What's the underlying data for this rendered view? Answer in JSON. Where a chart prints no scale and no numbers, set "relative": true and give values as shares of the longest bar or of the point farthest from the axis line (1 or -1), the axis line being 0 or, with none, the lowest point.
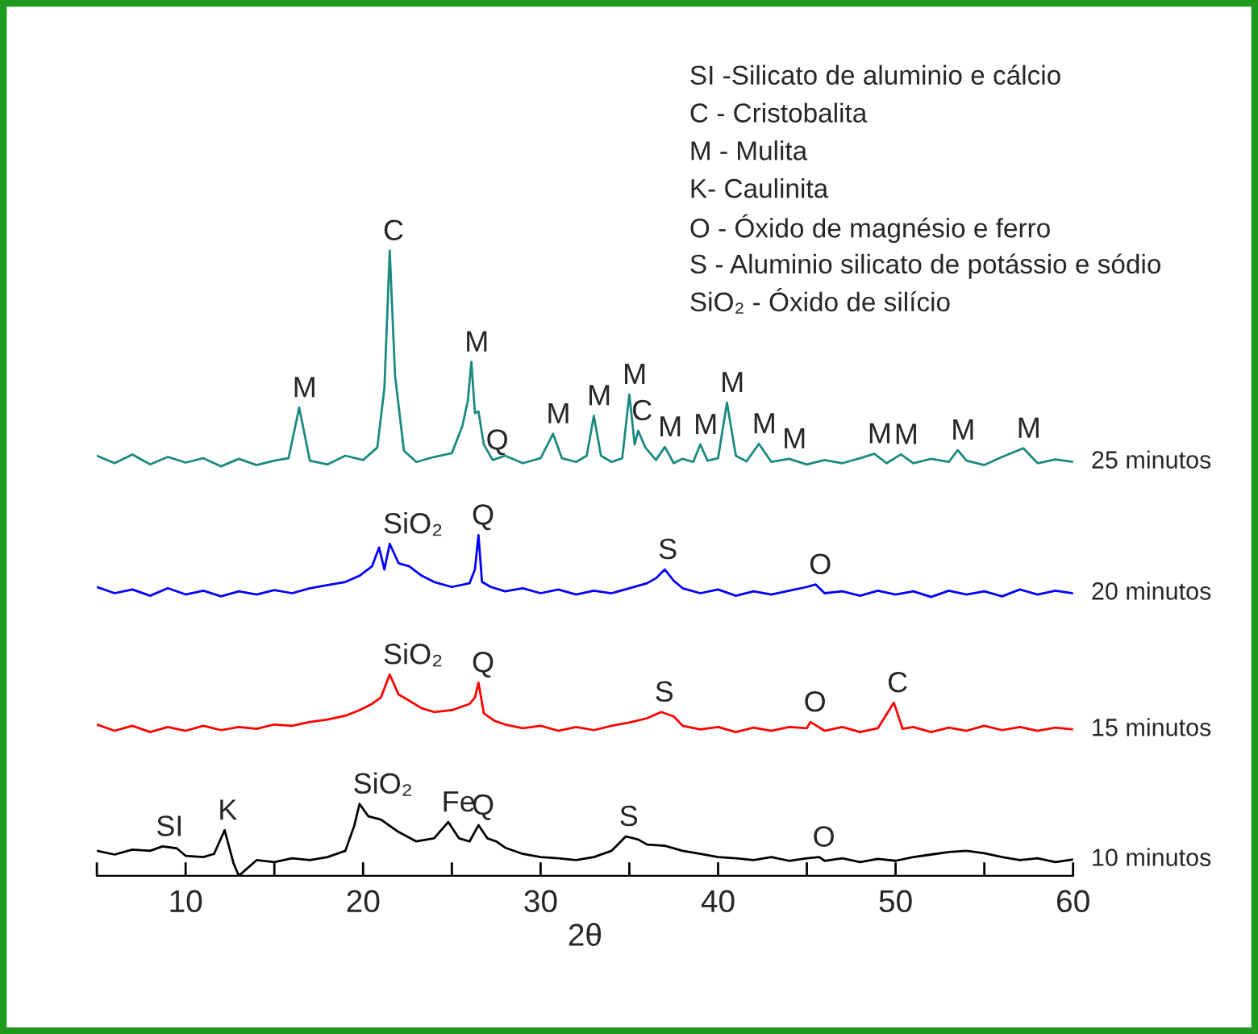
{
  "chart_data": {
    "type": "line",
    "relative": true,
    "xlabel": "2θ",
    "xlim": [
      5,
      60
    ],
    "xticks": [
      {
        "value": 5,
        "label": null
      },
      10,
      {
        "value": 15,
        "label": null
      },
      20,
      {
        "value": 25,
        "label": null
      },
      30,
      {
        "value": 35,
        "label": null
      },
      40,
      {
        "value": 45,
        "label": null
      },
      50,
      {
        "value": 55,
        "label": null
      },
      60
    ],
    "series": [
      {
        "name": "25 minutos",
        "color": "#1a8a80",
        "x": [
          5,
          6,
          7,
          8,
          9,
          10,
          11,
          12,
          13,
          14,
          15,
          15.8,
          16.4,
          17,
          18,
          19,
          20,
          20.8,
          21.2,
          21.5,
          21.8,
          22.3,
          23,
          24,
          25,
          25.6,
          25.9,
          26.1,
          26.3,
          26.5,
          26.8,
          27.3,
          28,
          29,
          30,
          30.7,
          31.2,
          32,
          32.6,
          33,
          33.4,
          34,
          34.6,
          35,
          35.3,
          35.5,
          35.9,
          36.5,
          37,
          37.5,
          38,
          38.6,
          39,
          39.4,
          40,
          40.5,
          41,
          41.6,
          42.3,
          43,
          44,
          45,
          46,
          47,
          48,
          48.8,
          49.5,
          50.3,
          51,
          52,
          53,
          53.5,
          54,
          55,
          56,
          57.2,
          58,
          59,
          60
        ],
        "values": [
          0.672,
          0.66,
          0.674,
          0.658,
          0.67,
          0.661,
          0.668,
          0.655,
          0.667,
          0.657,
          0.664,
          0.668,
          0.749,
          0.664,
          0.658,
          0.672,
          0.665,
          0.685,
          0.78,
          1.0,
          0.8,
          0.68,
          0.662,
          0.67,
          0.676,
          0.72,
          0.76,
          0.822,
          0.74,
          0.743,
          0.69,
          0.665,
          0.672,
          0.66,
          0.668,
          0.707,
          0.668,
          0.662,
          0.672,
          0.736,
          0.672,
          0.662,
          0.668,
          0.77,
          0.69,
          0.712,
          0.685,
          0.665,
          0.686,
          0.66,
          0.667,
          0.662,
          0.69,
          0.664,
          0.668,
          0.757,
          0.672,
          0.663,
          0.691,
          0.662,
          0.667,
          0.658,
          0.665,
          0.66,
          0.668,
          0.675,
          0.66,
          0.674,
          0.66,
          0.667,
          0.662,
          0.681,
          0.664,
          0.657,
          0.67,
          0.684,
          0.66,
          0.666,
          0.662
        ]
      },
      {
        "name": "20 minutos",
        "color": "#0000ff",
        "x": [
          5,
          6,
          7,
          8,
          9,
          10,
          11,
          12,
          13,
          14,
          15,
          16,
          17,
          18,
          19,
          19.8,
          20.5,
          20.9,
          21.2,
          21.5,
          22,
          22.6,
          23.3,
          24,
          25,
          26,
          26.3,
          26.5,
          26.7,
          27.2,
          28,
          29,
          30,
          31,
          32,
          33,
          34,
          35,
          36,
          36.5,
          37,
          37.5,
          38,
          39,
          40,
          41,
          42,
          43,
          44,
          45,
          45.5,
          46,
          47,
          48,
          49,
          50,
          51,
          52,
          53,
          54,
          55,
          56,
          57,
          58,
          59,
          60
        ],
        "values": [
          0.462,
          0.452,
          0.458,
          0.448,
          0.46,
          0.45,
          0.456,
          0.447,
          0.455,
          0.45,
          0.457,
          0.452,
          0.46,
          0.465,
          0.47,
          0.48,
          0.495,
          0.525,
          0.49,
          0.531,
          0.5,
          0.495,
          0.48,
          0.47,
          0.462,
          0.468,
          0.49,
          0.545,
          0.47,
          0.462,
          0.455,
          0.46,
          0.452,
          0.458,
          0.45,
          0.456,
          0.452,
          0.46,
          0.468,
          0.476,
          0.49,
          0.472,
          0.46,
          0.452,
          0.458,
          0.448,
          0.455,
          0.45,
          0.456,
          0.462,
          0.466,
          0.452,
          0.455,
          0.448,
          0.456,
          0.45,
          0.455,
          0.446,
          0.456,
          0.45,
          0.455,
          0.447,
          0.458,
          0.45,
          0.456,
          0.452
        ]
      },
      {
        "name": "15 minutos",
        "color": "#ff0000",
        "x": [
          5,
          6,
          7,
          8,
          9,
          10,
          11,
          12,
          13,
          14,
          15,
          16,
          17,
          18,
          19,
          19.8,
          20.5,
          21,
          21.5,
          22,
          22.6,
          23.3,
          24,
          25,
          26,
          26.3,
          26.5,
          26.8,
          27.4,
          28,
          29,
          30,
          31,
          32,
          33,
          34,
          35,
          36,
          36.8,
          37.5,
          38,
          39,
          40,
          41,
          42,
          43,
          44,
          45,
          45.2,
          46,
          47,
          48,
          49,
          49.9,
          50.4,
          51,
          52,
          53,
          54,
          55,
          56,
          57,
          58,
          59,
          60
        ],
        "values": [
          0.242,
          0.232,
          0.24,
          0.23,
          0.238,
          0.232,
          0.24,
          0.233,
          0.238,
          0.235,
          0.242,
          0.24,
          0.246,
          0.25,
          0.256,
          0.265,
          0.275,
          0.285,
          0.322,
          0.29,
          0.28,
          0.268,
          0.262,
          0.265,
          0.275,
          0.285,
          0.309,
          0.26,
          0.248,
          0.242,
          0.236,
          0.24,
          0.232,
          0.238,
          0.233,
          0.24,
          0.245,
          0.252,
          0.262,
          0.255,
          0.24,
          0.234,
          0.238,
          0.23,
          0.237,
          0.232,
          0.238,
          0.236,
          0.246,
          0.232,
          0.238,
          0.23,
          0.236,
          0.277,
          0.235,
          0.238,
          0.23,
          0.237,
          0.232,
          0.24,
          0.233,
          0.238,
          0.232,
          0.237,
          0.234
        ]
      },
      {
        "name": "10 minutos",
        "color": "#000000",
        "x": [
          5,
          6,
          7,
          8,
          8.7,
          9.5,
          10,
          11,
          11.6,
          12.2,
          12.7,
          13,
          14,
          15,
          16,
          17,
          18,
          19,
          19.5,
          19.8,
          20.3,
          21,
          22,
          23,
          24,
          24.8,
          25.4,
          26,
          26.5,
          27,
          27.5,
          28,
          29,
          30,
          31,
          32,
          33,
          34,
          34.8,
          35.5,
          36,
          37,
          38,
          39,
          40,
          41,
          42,
          43,
          44,
          45,
          45.7,
          46,
          47,
          48,
          49,
          50,
          51,
          52,
          53,
          54,
          55,
          56,
          57,
          58,
          59,
          60
        ],
        "values": [
          0.04,
          0.034,
          0.042,
          0.04,
          0.047,
          0.044,
          0.032,
          0.03,
          0.035,
          0.073,
          0.02,
          0.0,
          0.025,
          0.022,
          0.028,
          0.025,
          0.03,
          0.04,
          0.08,
          0.115,
          0.095,
          0.09,
          0.07,
          0.055,
          0.06,
          0.086,
          0.06,
          0.055,
          0.081,
          0.06,
          0.055,
          0.045,
          0.035,
          0.03,
          0.028,
          0.025,
          0.03,
          0.04,
          0.063,
          0.058,
          0.05,
          0.048,
          0.04,
          0.035,
          0.03,
          0.028,
          0.025,
          0.03,
          0.024,
          0.028,
          0.03,
          0.024,
          0.028,
          0.022,
          0.027,
          0.024,
          0.03,
          0.034,
          0.038,
          0.04,
          0.036,
          0.03,
          0.025,
          0.028,
          0.022,
          0.026
        ]
      }
    ],
    "annotations": [
      "SI -Silicato de aluminio e cálcio",
      "C - Cristobalita",
      "M - Mulita",
      "K- Caulinita",
      "O - Óxido de magnésio e ferro",
      "S - Aluminio silicato de potássio e sódio",
      "SiO₂ - Óxido de silício",
      {
        "text": "M",
        "x": 16.4,
        "y": 0.749
      },
      {
        "text": "C",
        "x": 21.5,
        "y": 1.0
      },
      {
        "text": "M",
        "x": 26.1,
        "y": 0.822
      },
      {
        "text": "Q",
        "x": 27.3,
        "y": 0.665
      },
      {
        "text": "M",
        "x": 30.7,
        "y": 0.707
      },
      {
        "text": "M",
        "x": 33,
        "y": 0.736
      },
      {
        "text": "M",
        "x": 35,
        "y": 0.77
      },
      {
        "text": "C",
        "x": 35.5,
        "y": 0.712
      },
      {
        "text": "M",
        "x": 37,
        "y": 0.686
      },
      {
        "text": "M",
        "x": 39,
        "y": 0.69
      },
      {
        "text": "M",
        "x": 40.5,
        "y": 0.757
      },
      {
        "text": "M",
        "x": 42.3,
        "y": 0.691
      },
      {
        "text": "M",
        "x": 44,
        "y": 0.667
      },
      {
        "text": "M",
        "x": 48.8,
        "y": 0.675
      },
      {
        "text": "M",
        "x": 50.3,
        "y": 0.674
      },
      {
        "text": "M",
        "x": 53.5,
        "y": 0.681
      },
      {
        "text": "M",
        "x": 57.2,
        "y": 0.684
      },
      {
        "text": "SiO₂",
        "x": 21.5,
        "y": 0.531
      },
      {
        "text": "Q",
        "x": 26.5,
        "y": 0.545
      },
      {
        "text": "S",
        "x": 37,
        "y": 0.49
      },
      {
        "text": "O",
        "x": 45.5,
        "y": 0.466
      },
      {
        "text": "SiO₂",
        "x": 21.5,
        "y": 0.322
      },
      {
        "text": "Q",
        "x": 26.5,
        "y": 0.309
      },
      {
        "text": "S",
        "x": 36.8,
        "y": 0.262
      },
      {
        "text": "O",
        "x": 45.2,
        "y": 0.246
      },
      {
        "text": "C",
        "x": 49.9,
        "y": 0.277
      },
      {
        "text": "SI",
        "x": 8.7,
        "y": 0.047
      },
      {
        "text": "K",
        "x": 12.2,
        "y": 0.073
      },
      {
        "text": "SiO₂",
        "x": 19.8,
        "y": 0.115
      },
      {
        "text": "Fe",
        "x": 24.8,
        "y": 0.086
      },
      {
        "text": "Q",
        "x": 26.5,
        "y": 0.081
      },
      {
        "text": "S",
        "x": 34.8,
        "y": 0.063
      },
      {
        "text": "O",
        "x": 45.7,
        "y": 0.03
      }
    ]
  }
}
